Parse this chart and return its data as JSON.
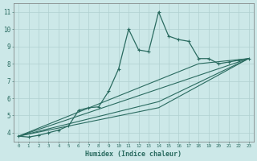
{
  "xlabel": "Humidex (Indice chaleur)",
  "background_color": "#cce8e8",
  "grid_color": "#b0d0d0",
  "line_color": "#2a6b60",
  "xlim": [
    -0.5,
    23.5
  ],
  "ylim": [
    3.5,
    11.5
  ],
  "yticks": [
    4,
    5,
    6,
    7,
    8,
    9,
    10,
    11
  ],
  "xticks": [
    0,
    1,
    2,
    3,
    4,
    5,
    6,
    7,
    8,
    9,
    10,
    11,
    12,
    13,
    14,
    15,
    16,
    17,
    18,
    19,
    20,
    21,
    22,
    23
  ],
  "main_x": [
    0,
    1,
    2,
    3,
    4,
    5,
    6,
    7,
    8,
    9,
    10,
    11,
    12,
    13,
    14,
    15,
    16,
    17,
    18,
    19,
    20,
    21,
    22,
    23
  ],
  "main_y": [
    3.8,
    3.75,
    3.85,
    4.0,
    4.15,
    4.4,
    5.3,
    5.45,
    5.5,
    6.4,
    7.7,
    10.0,
    8.8,
    8.7,
    11.0,
    9.6,
    9.4,
    9.3,
    8.3,
    8.3,
    8.0,
    8.1,
    8.2,
    8.3
  ],
  "line1_x": [
    0,
    23
  ],
  "line1_y": [
    3.8,
    8.3
  ],
  "line2_x": [
    0,
    18,
    23
  ],
  "line2_y": [
    3.8,
    8.0,
    8.3
  ],
  "line3_x": [
    0,
    14,
    23
  ],
  "line3_y": [
    3.8,
    5.8,
    8.3
  ],
  "line4_x": [
    0,
    14,
    23
  ],
  "line4_y": [
    3.8,
    5.45,
    8.3
  ]
}
